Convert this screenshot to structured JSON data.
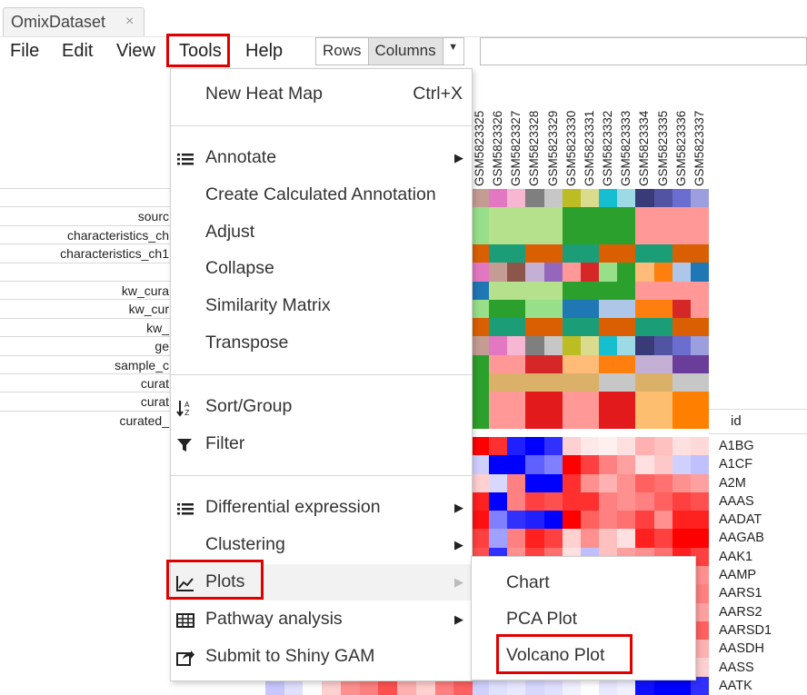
{
  "tab": {
    "title": "OmixDataset",
    "close": "×"
  },
  "menubar": {
    "file": "File",
    "edit": "Edit",
    "view": "View",
    "tools": "Tools",
    "help": "Help"
  },
  "toggle": {
    "rows": "Rows",
    "columns": "Columns",
    "dropdown_arrow": "▼"
  },
  "annotation_labels": [
    "",
    "sourc",
    "characteristics_ch",
    "characteristics_ch1",
    "",
    "kw_cura",
    "kw_cur",
    "kw_",
    "ge",
    "sample_c",
    "curat",
    "curat",
    "curated_"
  ],
  "samples": [
    "GSM5823325",
    "GSM5823326",
    "GSM5823327",
    "GSM5823328",
    "GSM5823329",
    "GSM5823330",
    "GSM5823331",
    "GSM5823332",
    "GSM5823333",
    "GSM5823334",
    "GSM5823335",
    "GSM5823336",
    "GSM5823337"
  ],
  "gene_header": "id",
  "genes": [
    "A1BG",
    "A1CF",
    "A2M",
    "AAAS",
    "AADAT",
    "AAGAB",
    "AAK1",
    "AAMP",
    "AARS1",
    "AARS2",
    "AARSD1",
    "AASDH",
    "AASS",
    "AATK"
  ],
  "tools_menu": {
    "new_heat_map": "New Heat Map",
    "new_heat_map_shortcut": "Ctrl+X",
    "annotate": "Annotate",
    "create_calculated_annotation": "Create Calculated Annotation",
    "adjust": "Adjust",
    "collapse": "Collapse",
    "similarity_matrix": "Similarity Matrix",
    "transpose": "Transpose",
    "sort_group": "Sort/Group",
    "filter": "Filter",
    "differential_expression": "Differential expression",
    "clustering": "Clustering",
    "plots": "Plots",
    "pathway_analysis": "Pathway analysis",
    "submit_shiny_gam": "Submit to Shiny GAM",
    "submenu_arrow": "▶"
  },
  "plots_submenu": {
    "chart": "Chart",
    "pca_plot": "PCA Plot",
    "volcano_plot": "Volcano Plot"
  },
  "colors": {
    "highlight": "#e00000",
    "heat_high": "#ff0000",
    "heat_low": "#0000ff"
  },
  "annotation_grid": [
    [
      "#c49c94",
      "#e377c2",
      "#f7b6d2",
      "#7f7f7f",
      "#c7c7c7",
      "#bcbd22",
      "#dbdb8d",
      "#17becf",
      "#9edae5",
      "#393b79",
      "#5254a3",
      "#6b6ecf",
      "#9c9ede"
    ],
    [
      "#98df8a",
      "#b5e08c",
      "#b5e08c",
      "#b5e08c",
      "#b5e08c",
      "#2ca02c",
      "#2ca02c",
      "#2ca02c",
      "#2ca02c",
      "#ff9896",
      "#ff9896",
      "#ff9896",
      "#ff9896"
    ],
    [
      "#98df8a",
      "#b5e08c",
      "#b5e08c",
      "#b5e08c",
      "#b5e08c",
      "#2ca02c",
      "#2ca02c",
      "#2ca02c",
      "#2ca02c",
      "#ff9896",
      "#ff9896",
      "#ff9896",
      "#ff9896"
    ],
    [
      "#d95f02",
      "#1b9e77",
      "#1b9e77",
      "#d95f02",
      "#d95f02",
      "#1b9e77",
      "#1b9e77",
      "#d95f02",
      "#d95f02",
      "#1b9e77",
      "#1b9e77",
      "#d95f02",
      "#d95f02"
    ],
    [
      "#e377c2",
      "#c49c94",
      "#8c564b",
      "#c5b0d5",
      "#9467bd",
      "#ff9896",
      "#d62728",
      "#98df8a",
      "#2ca02c",
      "#ffbb78",
      "#ff7f0e",
      "#aec7e8",
      "#1f77b4"
    ],
    [
      "#1f77b4",
      "#b5e08c",
      "#b5e08c",
      "#b5e08c",
      "#b5e08c",
      "#2ca02c",
      "#2ca02c",
      "#2ca02c",
      "#2ca02c",
      "#ff9896",
      "#ff9896",
      "#ff9896",
      "#ff9896"
    ],
    [
      "#98df8a",
      "#2ca02c",
      "#2ca02c",
      "#98df8a",
      "#98df8a",
      "#1f77b4",
      "#1f77b4",
      "#aec7e8",
      "#aec7e8",
      "#ff7f0e",
      "#ff7f0e",
      "#d62728",
      "#ff9896"
    ],
    [
      "#d95f02",
      "#1b9e77",
      "#1b9e77",
      "#d95f02",
      "#d95f02",
      "#1b9e77",
      "#1b9e77",
      "#d95f02",
      "#d95f02",
      "#1b9e77",
      "#1b9e77",
      "#d95f02",
      "#d95f02"
    ],
    [
      "#c49c94",
      "#e377c2",
      "#f7b6d2",
      "#7f7f7f",
      "#c7c7c7",
      "#bcbd22",
      "#dbdb8d",
      "#17becf",
      "#9edae5",
      "#393b79",
      "#5254a3",
      "#6b6ecf",
      "#9c9ede"
    ],
    [
      "#2ca02c",
      "#ff9896",
      "#ff9896",
      "#d62728",
      "#d62728",
      "#ffbb78",
      "#ffbb78",
      "#ff7f0e",
      "#ff7f0e",
      "#c5b0d5",
      "#c5b0d5",
      "#6a3d9a",
      "#6a3d9a"
    ],
    [
      "#2ca02c",
      "#dbb068",
      "#dbb068",
      "#dbb068",
      "#dbb068",
      "#dbb068",
      "#dbb068",
      "#c7c7c7",
      "#c7c7c7",
      "#dbb068",
      "#dbb068",
      "#c7c7c7",
      "#c7c7c7"
    ],
    [
      "#2ca02c",
      "#ff9896",
      "#ff9896",
      "#e31a1c",
      "#e31a1c",
      "#ff9896",
      "#ff9896",
      "#e31a1c",
      "#e31a1c",
      "#fdbf6f",
      "#fdbf6f",
      "#ff7f00",
      "#ff7f00"
    ],
    [
      "#2ca02c",
      "#ff9896",
      "#ff9896",
      "#e31a1c",
      "#e31a1c",
      "#ff9896",
      "#ff9896",
      "#e31a1c",
      "#e31a1c",
      "#fdbf6f",
      "#fdbf6f",
      "#ff7f00",
      "#ff7f00"
    ]
  ],
  "heatmap_grid": [
    [
      "#ff0000",
      "#ff3030",
      "#2020ff",
      "#0000ff",
      "#3030ff",
      "#ffd0d0",
      "#ffe8e8",
      "#fff0f0",
      "#ffe0e0",
      "#ffb0b0",
      "#ffc0c0",
      "#ffe0e0",
      "#ffd8d8"
    ],
    [
      "#d0d0ff",
      "#0000ff",
      "#0000ff",
      "#6060ff",
      "#8080ff",
      "#ff0000",
      "#ff4040",
      "#ff8080",
      "#ffa0a0",
      "#ffe0e0",
      "#ffc8c8",
      "#d0d0ff",
      "#c0c0ff"
    ],
    [
      "#ffd0d0",
      "#d8d8ff",
      "#ff8080",
      "#0000ff",
      "#0000ff",
      "#ff3030",
      "#ff9090",
      "#ffb0b0",
      "#ff9090",
      "#ff6060",
      "#ff7070",
      "#ff9090",
      "#ffa0a0"
    ],
    [
      "#ff2020",
      "#0000ff",
      "#ff8080",
      "#ff4040",
      "#ff5050",
      "#ff3030",
      "#ff3030",
      "#ff8080",
      "#ff9090",
      "#ff8080",
      "#ff6060",
      "#ff4040",
      "#ff5050"
    ],
    [
      "#ff1010",
      "#8080ff",
      "#3030ff",
      "#2020ff",
      "#0000ff",
      "#ff0000",
      "#ff6060",
      "#ff8080",
      "#ff7070",
      "#ff4040",
      "#ff9090",
      "#ff2020",
      "#ff2020"
    ],
    [
      "#ff4040",
      "#a0a0ff",
      "#ff8080",
      "#ff2020",
      "#ff4040",
      "#ffd0d0",
      "#ff9090",
      "#ffc0c0",
      "#ffe0e0",
      "#ff2020",
      "#ff4040",
      "#ff0000",
      "#ff0000"
    ],
    [
      "#ff5050",
      "#3030ff",
      "#ff9090",
      "#ff4040",
      "#ff7070",
      "#ffe0e0",
      "#c0c0ff",
      "#ffc0c0",
      "#ffa0a0",
      "#ff9090",
      "#ff7070",
      "#ff2020",
      "#ff4040"
    ],
    [
      "#ff8080",
      "#ffa0a0",
      "#ffb0b0",
      "#ff9090",
      "#ffa0a0",
      "#ffc0c0",
      "#ffd0d0",
      "#ffc0c0",
      "#ffd8d8",
      "#ffb0b0",
      "#ffa0a0",
      "#ff8080",
      "#ff9090"
    ],
    [
      "#ff7070",
      "#ff9090",
      "#ffa0a0",
      "#ff8080",
      "#ff9090",
      "#ffb0b0",
      "#ffc0c0",
      "#ffb0b0",
      "#ffc8c8",
      "#ffa0a0",
      "#ff9090",
      "#ff7070",
      "#ff8080"
    ],
    [
      "#ff9090",
      "#ffb0b0",
      "#ffc0c0",
      "#ffa0a0",
      "#ffb0b0",
      "#ffd0d0",
      "#ffe0e0",
      "#ffd0d0",
      "#ffe0e0",
      "#ffc0c0",
      "#ffb0b0",
      "#ff9090",
      "#ffa0a0"
    ],
    [
      "#ff6060",
      "#ff8080",
      "#ff9090",
      "#ff7070",
      "#ff8080",
      "#ffa0a0",
      "#ffb0b0",
      "#ffa0a0",
      "#ffb8b8",
      "#ff9090",
      "#ff8080",
      "#ff4040",
      "#ff6060"
    ],
    [
      "#ffa0a0",
      "#ffc0c0",
      "#ffd0d0",
      "#ffb0b0",
      "#ffc0c0",
      "#ffe0e0",
      "#fff0f0",
      "#ffe0e0",
      "#fff0f0",
      "#ffd0d0",
      "#ffc0c0",
      "#ffa0a0",
      "#ffb0b0"
    ],
    [
      "#ffc0c0",
      "#ffd8d8",
      "#ffe0e0",
      "#ffd0d0",
      "#ffd8d8",
      "#fff0f0",
      "#ffffff",
      "#f0f0ff",
      "#ffffff",
      "#ffe8e8",
      "#ffd8d8",
      "#ffc0c0",
      "#ffd0d0"
    ],
    [
      "#d0d0ff",
      "#e0e0ff",
      "#e8e8ff",
      "#d8d8ff",
      "#e0e0ff",
      "#f0f0ff",
      "#ffffff",
      "#e8e8ff",
      "#f0f0ff",
      "#1010ff",
      "#0000ff",
      "#0000ff",
      "#3030ff"
    ]
  ],
  "bottom_left_strip": [
    "#c8c8ff",
    "#e0e0ff",
    "#ffffff",
    "#ffd0d0",
    "#ff9090",
    "#ff8080",
    "#ff5050",
    "#ffb0b0",
    "#ffd0d0",
    "#ff8080",
    "#ff6060"
  ]
}
